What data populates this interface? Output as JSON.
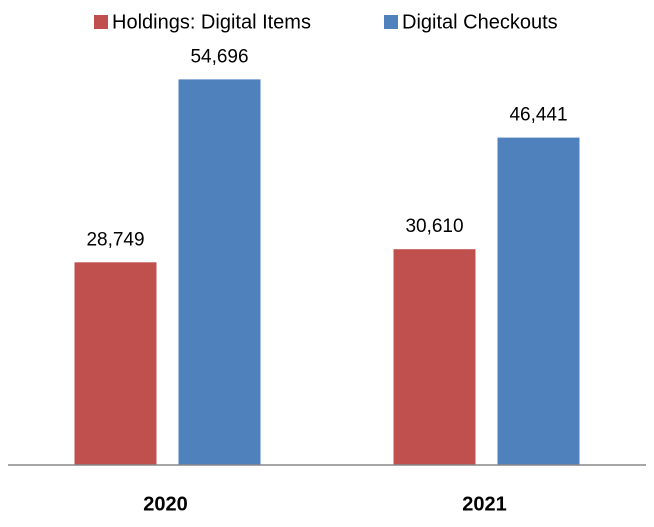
{
  "chart_data": {
    "type": "bar",
    "categories": [
      "2020",
      "2021"
    ],
    "series": [
      {
        "name": "Holdings: Digital Items",
        "color": "#c0504d",
        "values": [
          28749,
          30610
        ],
        "value_labels": [
          "28,749",
          "30,610"
        ]
      },
      {
        "name": "Digital Checkouts",
        "color": "#4f81bd",
        "values": [
          54696,
          46441
        ],
        "value_labels": [
          "54,696",
          "46,441"
        ]
      }
    ],
    "ylim": [
      0,
      60000
    ],
    "legend": "top"
  }
}
